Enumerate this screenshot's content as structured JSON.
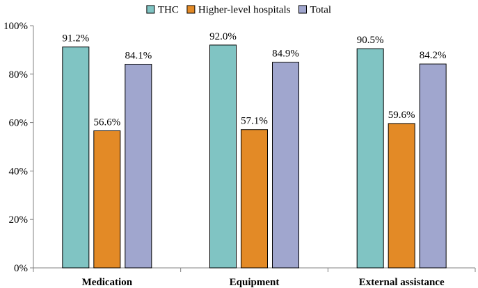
{
  "chart_data": {
    "type": "bar",
    "title": "",
    "xlabel": "",
    "ylabel": "",
    "categories": [
      "Medication",
      "Equipment",
      "External assistance"
    ],
    "series": [
      {
        "name": "THC",
        "values": [
          91.2,
          92.0,
          90.5
        ],
        "labels": [
          "91.2%",
          "92.0%",
          "90.5%"
        ],
        "color": "#80C4C3"
      },
      {
        "name": "Higher-level hospitals",
        "values": [
          56.6,
          57.1,
          59.6
        ],
        "labels": [
          "56.6%",
          "57.1%",
          "59.6%"
        ],
        "color": "#E38A26"
      },
      {
        "name": "Total",
        "values": [
          84.1,
          84.9,
          84.2
        ],
        "labels": [
          "84.1%",
          "84.9%",
          "84.2%"
        ],
        "color": "#A0A6CE"
      }
    ],
    "ylim": [
      0,
      100
    ],
    "yticks": [
      0,
      20,
      40,
      60,
      80,
      100
    ],
    "ytick_labels": [
      "0%",
      "20%",
      "40%",
      "60%",
      "80%",
      "100%"
    ],
    "grid": false,
    "legend_position": "top-center"
  }
}
